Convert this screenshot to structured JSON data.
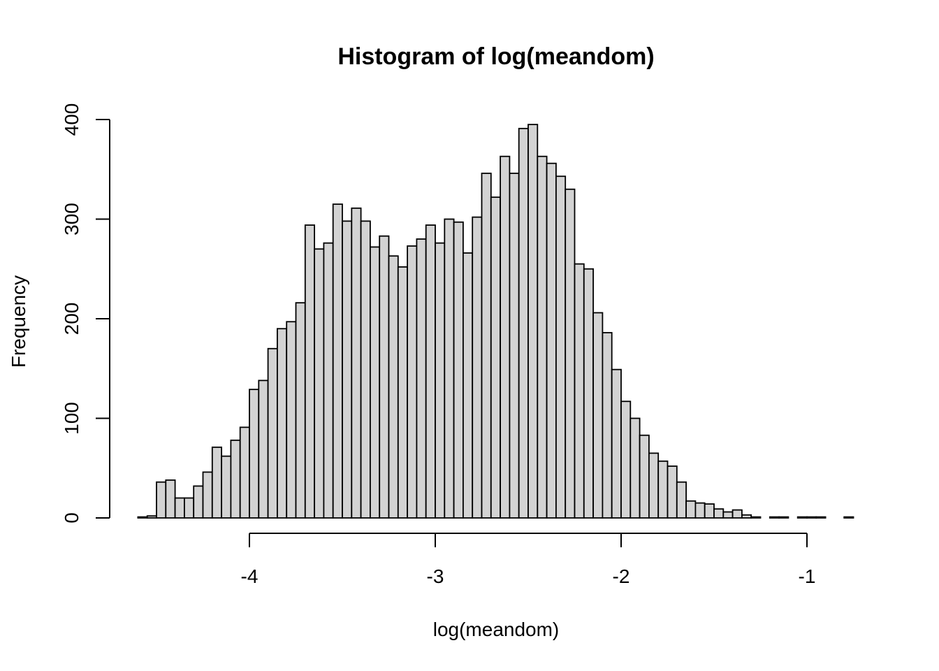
{
  "chart_data": {
    "type": "bar",
    "title": "Histogram of log(meandom)",
    "xlabel": "log(meandom)",
    "ylabel": "Frequency",
    "bar_color": "#d3d3d3",
    "xlim": [
      -4.6,
      -0.75
    ],
    "ylim": [
      0,
      400
    ],
    "x_ticks": [
      -4,
      -3,
      -2,
      -1
    ],
    "y_ticks": [
      0,
      100,
      200,
      300,
      400
    ],
    "bin_width": 0.05,
    "bin_start": -4.6,
    "values": [
      1,
      2,
      36,
      38,
      20,
      20,
      32,
      46,
      71,
      62,
      78,
      91,
      129,
      138,
      170,
      190,
      197,
      216,
      294,
      270,
      276,
      315,
      298,
      311,
      298,
      272,
      283,
      263,
      252,
      273,
      280,
      294,
      276,
      300,
      297,
      266,
      302,
      346,
      322,
      363,
      346,
      391,
      395,
      363,
      356,
      343,
      330,
      255,
      250,
      206,
      186,
      149,
      117,
      100,
      83,
      65,
      57,
      52,
      36,
      17,
      15,
      14,
      9,
      6,
      8,
      3,
      1,
      0,
      1,
      1,
      0,
      1,
      1,
      1,
      0,
      0,
      1
    ]
  }
}
